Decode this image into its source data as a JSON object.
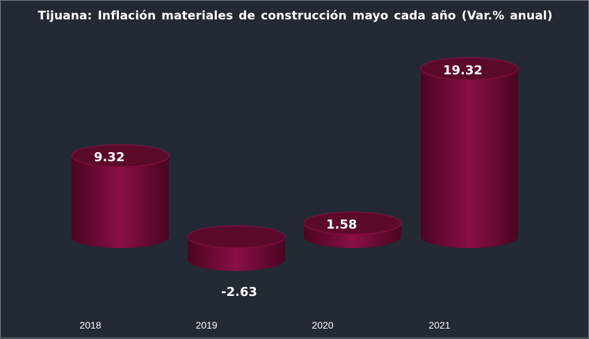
{
  "chart_data": {
    "type": "bar",
    "title": "Tijuana:  Inflación materiales de construcción  mayo cada año (Var.% anual)",
    "categories": [
      "2018",
      "2019",
      "2020",
      "2021"
    ],
    "values": [
      9.32,
      -2.63,
      1.58,
      19.32
    ],
    "value_labels": [
      "9.32",
      "-2.63",
      "1.58",
      "19.32"
    ],
    "xlabel": "",
    "ylabel": "",
    "grid": false,
    "legend": "none",
    "style": "3d-cylinder",
    "colors": {
      "background": "#232a33",
      "bar": "#8a0f45",
      "bar_dark": "#4a0522",
      "bar_top": "#5c0a2c",
      "text": "#ffffff",
      "border": "#7a7f86"
    }
  }
}
